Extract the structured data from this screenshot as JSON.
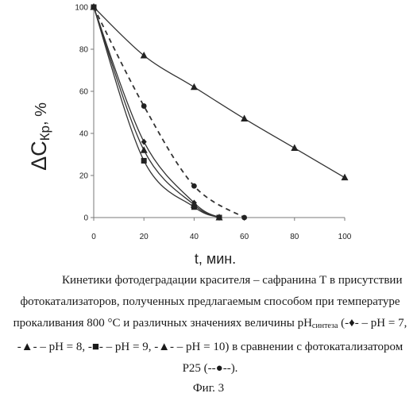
{
  "chart_data": {
    "type": "line",
    "xlabel": "t, мин.",
    "ylabel_main": "ΔC",
    "ylabel_sub": "Кр",
    "ylabel_unit": ", %",
    "xlim": [
      0,
      100
    ],
    "ylim": [
      0,
      100
    ],
    "x_ticks": [
      0,
      20,
      40,
      60,
      80,
      100
    ],
    "y_ticks": [
      0,
      20,
      40,
      60,
      80,
      100
    ],
    "grid": false,
    "series": [
      {
        "marker": "diamond",
        "dashed": false,
        "x": [
          0,
          20,
          40,
          50
        ],
        "y": [
          100,
          36,
          7,
          0
        ]
      },
      {
        "marker": "triangle",
        "dashed": false,
        "x": [
          0,
          20,
          40,
          50
        ],
        "y": [
          100,
          32,
          6,
          0
        ]
      },
      {
        "marker": "square",
        "dashed": false,
        "x": [
          0,
          20,
          40,
          50
        ],
        "y": [
          100,
          27,
          5,
          0
        ]
      },
      {
        "marker": "triangle",
        "dashed": false,
        "x": [
          0,
          20,
          40,
          60,
          80,
          100
        ],
        "y": [
          100,
          77,
          62,
          47,
          33,
          19
        ]
      },
      {
        "marker": "circle",
        "dashed": true,
        "x": [
          0,
          20,
          40,
          60
        ],
        "y": [
          100,
          53,
          15,
          0
        ]
      }
    ]
  },
  "caption": {
    "line1": "Кинетики фотодеградации красителя – сафранина Т в присутствии",
    "line2": "фотокатализаторов, полученных предлагаемым способом при температуре",
    "line3_a": "прокаливания 800 °С и различных значениях величины pH",
    "line3_sub": "синтеза",
    "line3_b": " (-♦- – pH = 7,",
    "line4": "-▲- – pH = 8, -■- – pH = 9, -▲- – pH = 10) в сравнении с фотокатализатором",
    "line5": "P25 (--●--).",
    "figure_label": "Фиг. 3"
  }
}
